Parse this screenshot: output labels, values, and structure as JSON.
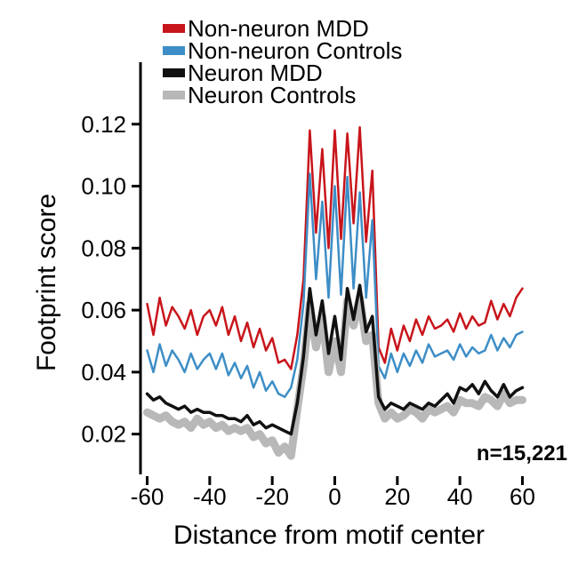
{
  "chart_data": {
    "type": "line",
    "xlabel": "Distance from motif center",
    "ylabel": "Footprint score",
    "xlim": [
      -61,
      61
    ],
    "ylim": [
      0.007,
      0.14
    ],
    "xticks": [
      -60,
      -40,
      -20,
      0,
      20,
      40,
      60
    ],
    "xtick_labels": [
      "-60",
      "-40",
      "-20",
      "0",
      "20",
      "40",
      "60"
    ],
    "yticks": [
      0.02,
      0.04,
      0.06,
      0.08,
      0.1,
      0.12
    ],
    "ytick_labels": [
      "0.02",
      "0.04",
      "0.06",
      "0.08",
      "0.10",
      "0.12"
    ],
    "grid": false,
    "legend_position": "top-left",
    "annotation": "n=15,221",
    "x": [
      -60,
      -58,
      -56,
      -54,
      -52,
      -50,
      -48,
      -46,
      -44,
      -42,
      -40,
      -38,
      -36,
      -34,
      -32,
      -30,
      -28,
      -26,
      -24,
      -22,
      -20,
      -18,
      -16,
      -14,
      -12,
      -10,
      -8,
      -6,
      -4,
      -2,
      0,
      2,
      4,
      6,
      8,
      10,
      12,
      14,
      16,
      18,
      20,
      22,
      24,
      26,
      28,
      30,
      32,
      34,
      36,
      38,
      40,
      42,
      44,
      46,
      48,
      50,
      52,
      54,
      56,
      58,
      60
    ],
    "series": [
      {
        "name": "Non-neuron MDD",
        "color": "#c8151b",
        "width": 2.5,
        "values": [
          0.062,
          0.052,
          0.064,
          0.055,
          0.061,
          0.058,
          0.054,
          0.06,
          0.052,
          0.058,
          0.06,
          0.055,
          0.061,
          0.052,
          0.058,
          0.05,
          0.056,
          0.048,
          0.054,
          0.047,
          0.051,
          0.043,
          0.044,
          0.041,
          0.052,
          0.07,
          0.118,
          0.085,
          0.112,
          0.08,
          0.118,
          0.083,
          0.117,
          0.088,
          0.119,
          0.082,
          0.105,
          0.048,
          0.043,
          0.054,
          0.047,
          0.055,
          0.05,
          0.057,
          0.052,
          0.058,
          0.054,
          0.055,
          0.057,
          0.053,
          0.059,
          0.054,
          0.058,
          0.055,
          0.056,
          0.063,
          0.057,
          0.062,
          0.058,
          0.064,
          0.067
        ]
      },
      {
        "name": "Non-neuron Controls",
        "color": "#3d8ec6",
        "width": 2.5,
        "values": [
          0.047,
          0.04,
          0.049,
          0.042,
          0.047,
          0.044,
          0.04,
          0.046,
          0.041,
          0.044,
          0.046,
          0.041,
          0.046,
          0.039,
          0.043,
          0.038,
          0.042,
          0.035,
          0.04,
          0.034,
          0.037,
          0.033,
          0.032,
          0.035,
          0.044,
          0.062,
          0.104,
          0.07,
          0.095,
          0.064,
          0.1,
          0.065,
          0.103,
          0.067,
          0.098,
          0.064,
          0.089,
          0.042,
          0.038,
          0.046,
          0.04,
          0.046,
          0.042,
          0.047,
          0.043,
          0.049,
          0.045,
          0.046,
          0.047,
          0.044,
          0.049,
          0.045,
          0.048,
          0.046,
          0.047,
          0.052,
          0.047,
          0.051,
          0.048,
          0.052,
          0.053
        ]
      },
      {
        "name": "Neuron Controls",
        "color": "#b8b8b8",
        "width": 9,
        "values": [
          0.027,
          0.026,
          0.025,
          0.026,
          0.024,
          0.023,
          0.024,
          0.022,
          0.025,
          0.023,
          0.024,
          0.022,
          0.023,
          0.021,
          0.022,
          0.021,
          0.022,
          0.019,
          0.02,
          0.017,
          0.018,
          0.014,
          0.016,
          0.013,
          0.028,
          0.042,
          0.062,
          0.048,
          0.058,
          0.04,
          0.05,
          0.04,
          0.063,
          0.055,
          0.064,
          0.05,
          0.052,
          0.03,
          0.025,
          0.027,
          0.025,
          0.026,
          0.028,
          0.027,
          0.025,
          0.028,
          0.027,
          0.028,
          0.029,
          0.027,
          0.031,
          0.03,
          0.03,
          0.029,
          0.032,
          0.031,
          0.029,
          0.033,
          0.03,
          0.031,
          0.031
        ]
      },
      {
        "name": "Neuron MDD",
        "color": "#111111",
        "width": 3.5,
        "values": [
          0.033,
          0.031,
          0.032,
          0.03,
          0.029,
          0.028,
          0.029,
          0.027,
          0.028,
          0.027,
          0.027,
          0.026,
          0.026,
          0.025,
          0.025,
          0.024,
          0.026,
          0.023,
          0.024,
          0.022,
          0.023,
          0.022,
          0.021,
          0.02,
          0.03,
          0.045,
          0.067,
          0.052,
          0.063,
          0.046,
          0.058,
          0.044,
          0.067,
          0.057,
          0.068,
          0.053,
          0.058,
          0.032,
          0.028,
          0.03,
          0.029,
          0.028,
          0.03,
          0.029,
          0.028,
          0.03,
          0.029,
          0.031,
          0.033,
          0.03,
          0.035,
          0.034,
          0.036,
          0.033,
          0.037,
          0.034,
          0.032,
          0.036,
          0.032,
          0.034,
          0.035
        ]
      }
    ],
    "legend_order": [
      "Non-neuron MDD",
      "Non-neuron Controls",
      "Neuron MDD",
      "Neuron Controls"
    ]
  }
}
